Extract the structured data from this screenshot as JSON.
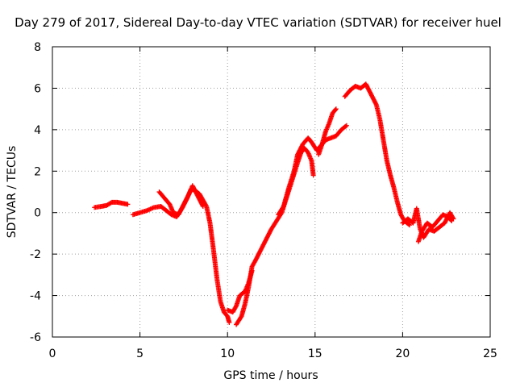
{
  "chart_data": {
    "type": "scatter",
    "title": "Day 279 of 2017, Sidereal Day-to-day VTEC variation (SDTVAR) for receiver huel",
    "xlabel": "GPS time / hours",
    "ylabel": "SDTVAR / TECUs",
    "xlim": [
      0,
      25
    ],
    "ylim": [
      -6,
      8
    ],
    "x_ticks": [
      "0",
      "5",
      "10",
      "15",
      "20",
      "25"
    ],
    "y_ticks": [
      "-6",
      "-4",
      "-2",
      "0",
      "2",
      "4",
      "6",
      "8"
    ],
    "grid": true,
    "marker": "plus",
    "series": [
      {
        "color": "#ff0000",
        "segments": [
          [
            [
              2.4,
              0.25
            ],
            [
              2.8,
              0.3
            ],
            [
              3.1,
              0.35
            ],
            [
              3.4,
              0.5
            ],
            [
              3.7,
              0.5
            ],
            [
              4.0,
              0.45
            ],
            [
              4.3,
              0.4
            ]
          ],
          [
            [
              4.6,
              -0.1
            ],
            [
              5.0,
              0.0
            ],
            [
              5.4,
              0.1
            ],
            [
              5.8,
              0.25
            ],
            [
              6.2,
              0.3
            ],
            [
              6.5,
              0.1
            ],
            [
              6.8,
              -0.1
            ],
            [
              7.1,
              -0.2
            ],
            [
              7.4,
              0.2
            ],
            [
              7.7,
              0.7
            ],
            [
              7.9,
              1.1
            ],
            [
              8.1,
              1.1
            ],
            [
              8.4,
              0.9
            ],
            [
              8.6,
              0.6
            ],
            [
              8.8,
              0.3
            ],
            [
              9.0,
              -0.5
            ],
            [
              9.2,
              -1.8
            ],
            [
              9.4,
              -3.2
            ],
            [
              9.6,
              -4.3
            ],
            [
              9.8,
              -4.8
            ],
            [
              10.0,
              -5.0
            ],
            [
              10.1,
              -5.3
            ]
          ],
          [
            [
              6.1,
              1.0
            ],
            [
              6.4,
              0.7
            ],
            [
              6.7,
              0.4
            ],
            [
              6.9,
              0.0
            ],
            [
              7.2,
              -0.1
            ],
            [
              7.5,
              0.4
            ],
            [
              7.8,
              0.9
            ],
            [
              8.0,
              1.3
            ],
            [
              8.3,
              0.8
            ],
            [
              8.6,
              0.3
            ]
          ],
          [
            [
              10.0,
              -4.7
            ],
            [
              10.3,
              -4.8
            ],
            [
              10.5,
              -4.5
            ],
            [
              10.7,
              -4.0
            ],
            [
              11.0,
              -3.8
            ],
            [
              11.2,
              -3.4
            ],
            [
              11.4,
              -2.8
            ]
          ],
          [
            [
              10.5,
              -5.4
            ],
            [
              10.8,
              -5.0
            ],
            [
              11.0,
              -4.4
            ],
            [
              11.2,
              -3.6
            ],
            [
              11.4,
              -2.6
            ],
            [
              11.6,
              -2.3
            ],
            [
              11.9,
              -1.8
            ],
            [
              12.2,
              -1.3
            ],
            [
              12.5,
              -0.8
            ],
            [
              12.8,
              -0.4
            ],
            [
              13.1,
              0.0
            ],
            [
              13.4,
              0.8
            ],
            [
              13.7,
              1.6
            ],
            [
              14.0,
              2.4
            ],
            [
              14.2,
              2.9
            ],
            [
              14.4,
              3.1
            ],
            [
              14.6,
              2.9
            ],
            [
              14.8,
              2.5
            ],
            [
              14.9,
              1.8
            ]
          ],
          [
            [
              12.9,
              -0.1
            ],
            [
              13.2,
              0.3
            ],
            [
              13.5,
              1.2
            ],
            [
              13.8,
              2.0
            ],
            [
              14.0,
              2.8
            ],
            [
              14.3,
              3.3
            ],
            [
              14.6,
              3.6
            ],
            [
              14.8,
              3.4
            ],
            [
              15.1,
              3.0
            ],
            [
              15.3,
              3.2
            ],
            [
              15.6,
              3.5
            ],
            [
              15.9,
              3.6
            ],
            [
              16.2,
              3.7
            ],
            [
              16.5,
              4.0
            ],
            [
              16.8,
              4.2
            ]
          ],
          [
            [
              15.2,
              2.8
            ],
            [
              15.4,
              3.3
            ],
            [
              15.6,
              3.9
            ],
            [
              15.8,
              4.3
            ],
            [
              16.0,
              4.8
            ],
            [
              16.2,
              5.0
            ]
          ],
          [
            [
              16.7,
              5.6
            ],
            [
              17.0,
              5.9
            ],
            [
              17.3,
              6.1
            ],
            [
              17.6,
              6.0
            ],
            [
              17.9,
              6.2
            ],
            [
              18.2,
              5.7
            ],
            [
              18.5,
              5.2
            ],
            [
              18.7,
              4.5
            ],
            [
              18.9,
              3.5
            ],
            [
              19.1,
              2.5
            ],
            [
              19.3,
              1.8
            ],
            [
              19.5,
              1.2
            ],
            [
              19.7,
              0.5
            ],
            [
              19.9,
              -0.1
            ],
            [
              20.1,
              -0.4
            ],
            [
              20.4,
              -0.6
            ]
          ],
          [
            [
              20.0,
              -0.5
            ],
            [
              20.3,
              -0.3
            ],
            [
              20.6,
              -0.5
            ],
            [
              20.8,
              0.2
            ],
            [
              21.0,
              -0.8
            ],
            [
              21.2,
              -1.2
            ],
            [
              21.5,
              -0.8
            ],
            [
              21.8,
              -0.9
            ],
            [
              22.1,
              -0.7
            ],
            [
              22.4,
              -0.5
            ],
            [
              22.7,
              0.0
            ],
            [
              22.9,
              -0.3
            ]
          ],
          [
            [
              20.9,
              -1.4
            ],
            [
              21.1,
              -0.9
            ],
            [
              21.4,
              -0.5
            ],
            [
              21.7,
              -0.7
            ],
            [
              22.0,
              -0.4
            ],
            [
              22.3,
              -0.1
            ],
            [
              22.6,
              -0.2
            ],
            [
              22.8,
              -0.4
            ]
          ]
        ]
      }
    ]
  }
}
